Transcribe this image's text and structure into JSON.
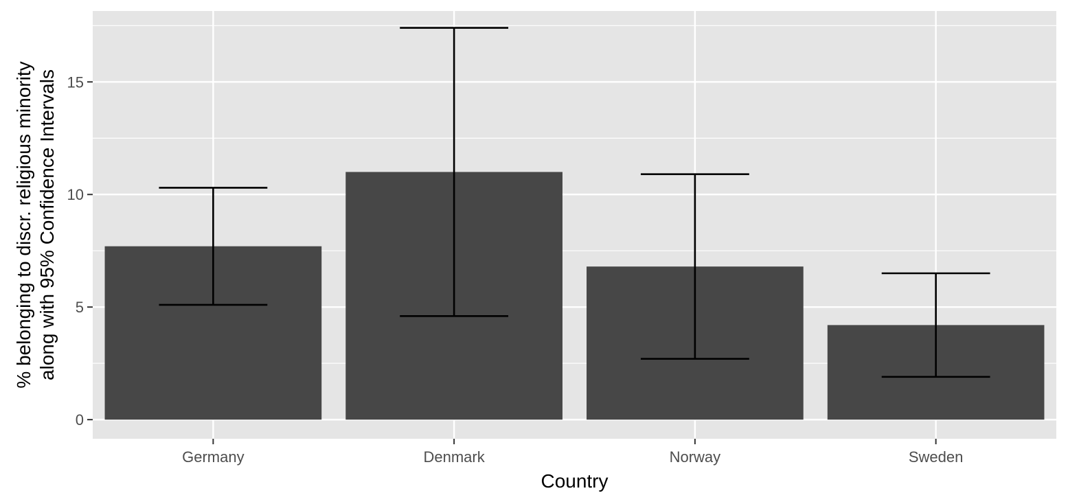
{
  "chart_data": {
    "type": "bar",
    "title": "",
    "xlabel": "Country",
    "ylabel_lines": [
      "% belonging to discr. religious minority",
      "along with 95% Confidence Intervals"
    ],
    "categories": [
      "Germany",
      "Denmark",
      "Norway",
      "Sweden"
    ],
    "series": [
      {
        "values": [
          7.7,
          11.0,
          6.8,
          4.2
        ],
        "ci_lower": [
          5.1,
          4.6,
          2.7,
          1.9
        ],
        "ci_upper": [
          10.3,
          17.4,
          10.9,
          6.5
        ]
      }
    ],
    "yticks": [
      0,
      5,
      10,
      15
    ],
    "ylim": [
      -0.85,
      18.15
    ],
    "grid": true,
    "legend": "none",
    "colors": {
      "panel_bg": "#e5e5e5",
      "grid": "#ffffff",
      "bar": "#474747",
      "errorbar": "#000000",
      "tick": "#333333"
    }
  }
}
